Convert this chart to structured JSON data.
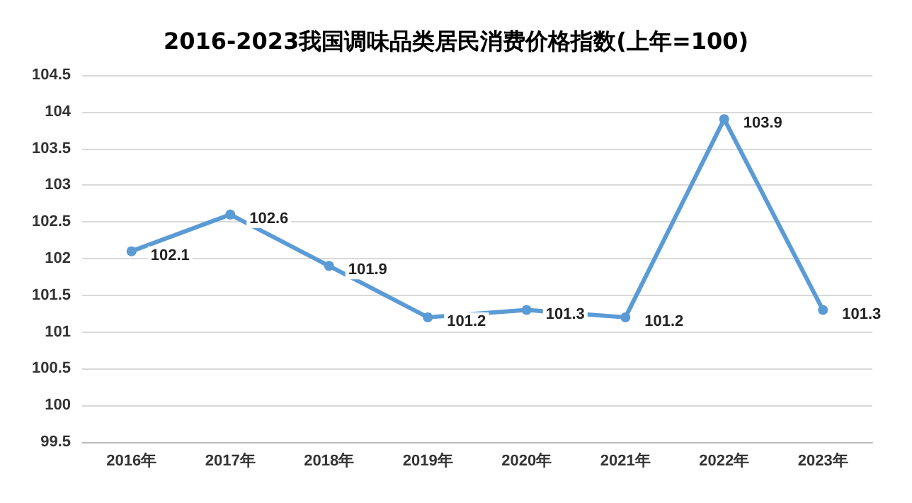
{
  "chart_data": {
    "type": "line",
    "title": "2016-2023我国调味品类居民消费价格指数(上年=100)",
    "categories": [
      "2016年",
      "2017年",
      "2018年",
      "2019年",
      "2020年",
      "2021年",
      "2022年",
      "2023年"
    ],
    "series": [
      {
        "color": "#5b9bd5",
        "values": [
          102.1,
          102.6,
          101.9,
          101.2,
          101.3,
          101.2,
          103.9,
          101.3
        ]
      }
    ],
    "ylim": [
      99.5,
      104.5
    ],
    "yticks": [
      99.5,
      100,
      100.5,
      101,
      101.5,
      102,
      102.5,
      103,
      103.5,
      104,
      104.5
    ],
    "grid": "y",
    "marker": "circle",
    "line_style": "solid",
    "data_labels": true
  }
}
